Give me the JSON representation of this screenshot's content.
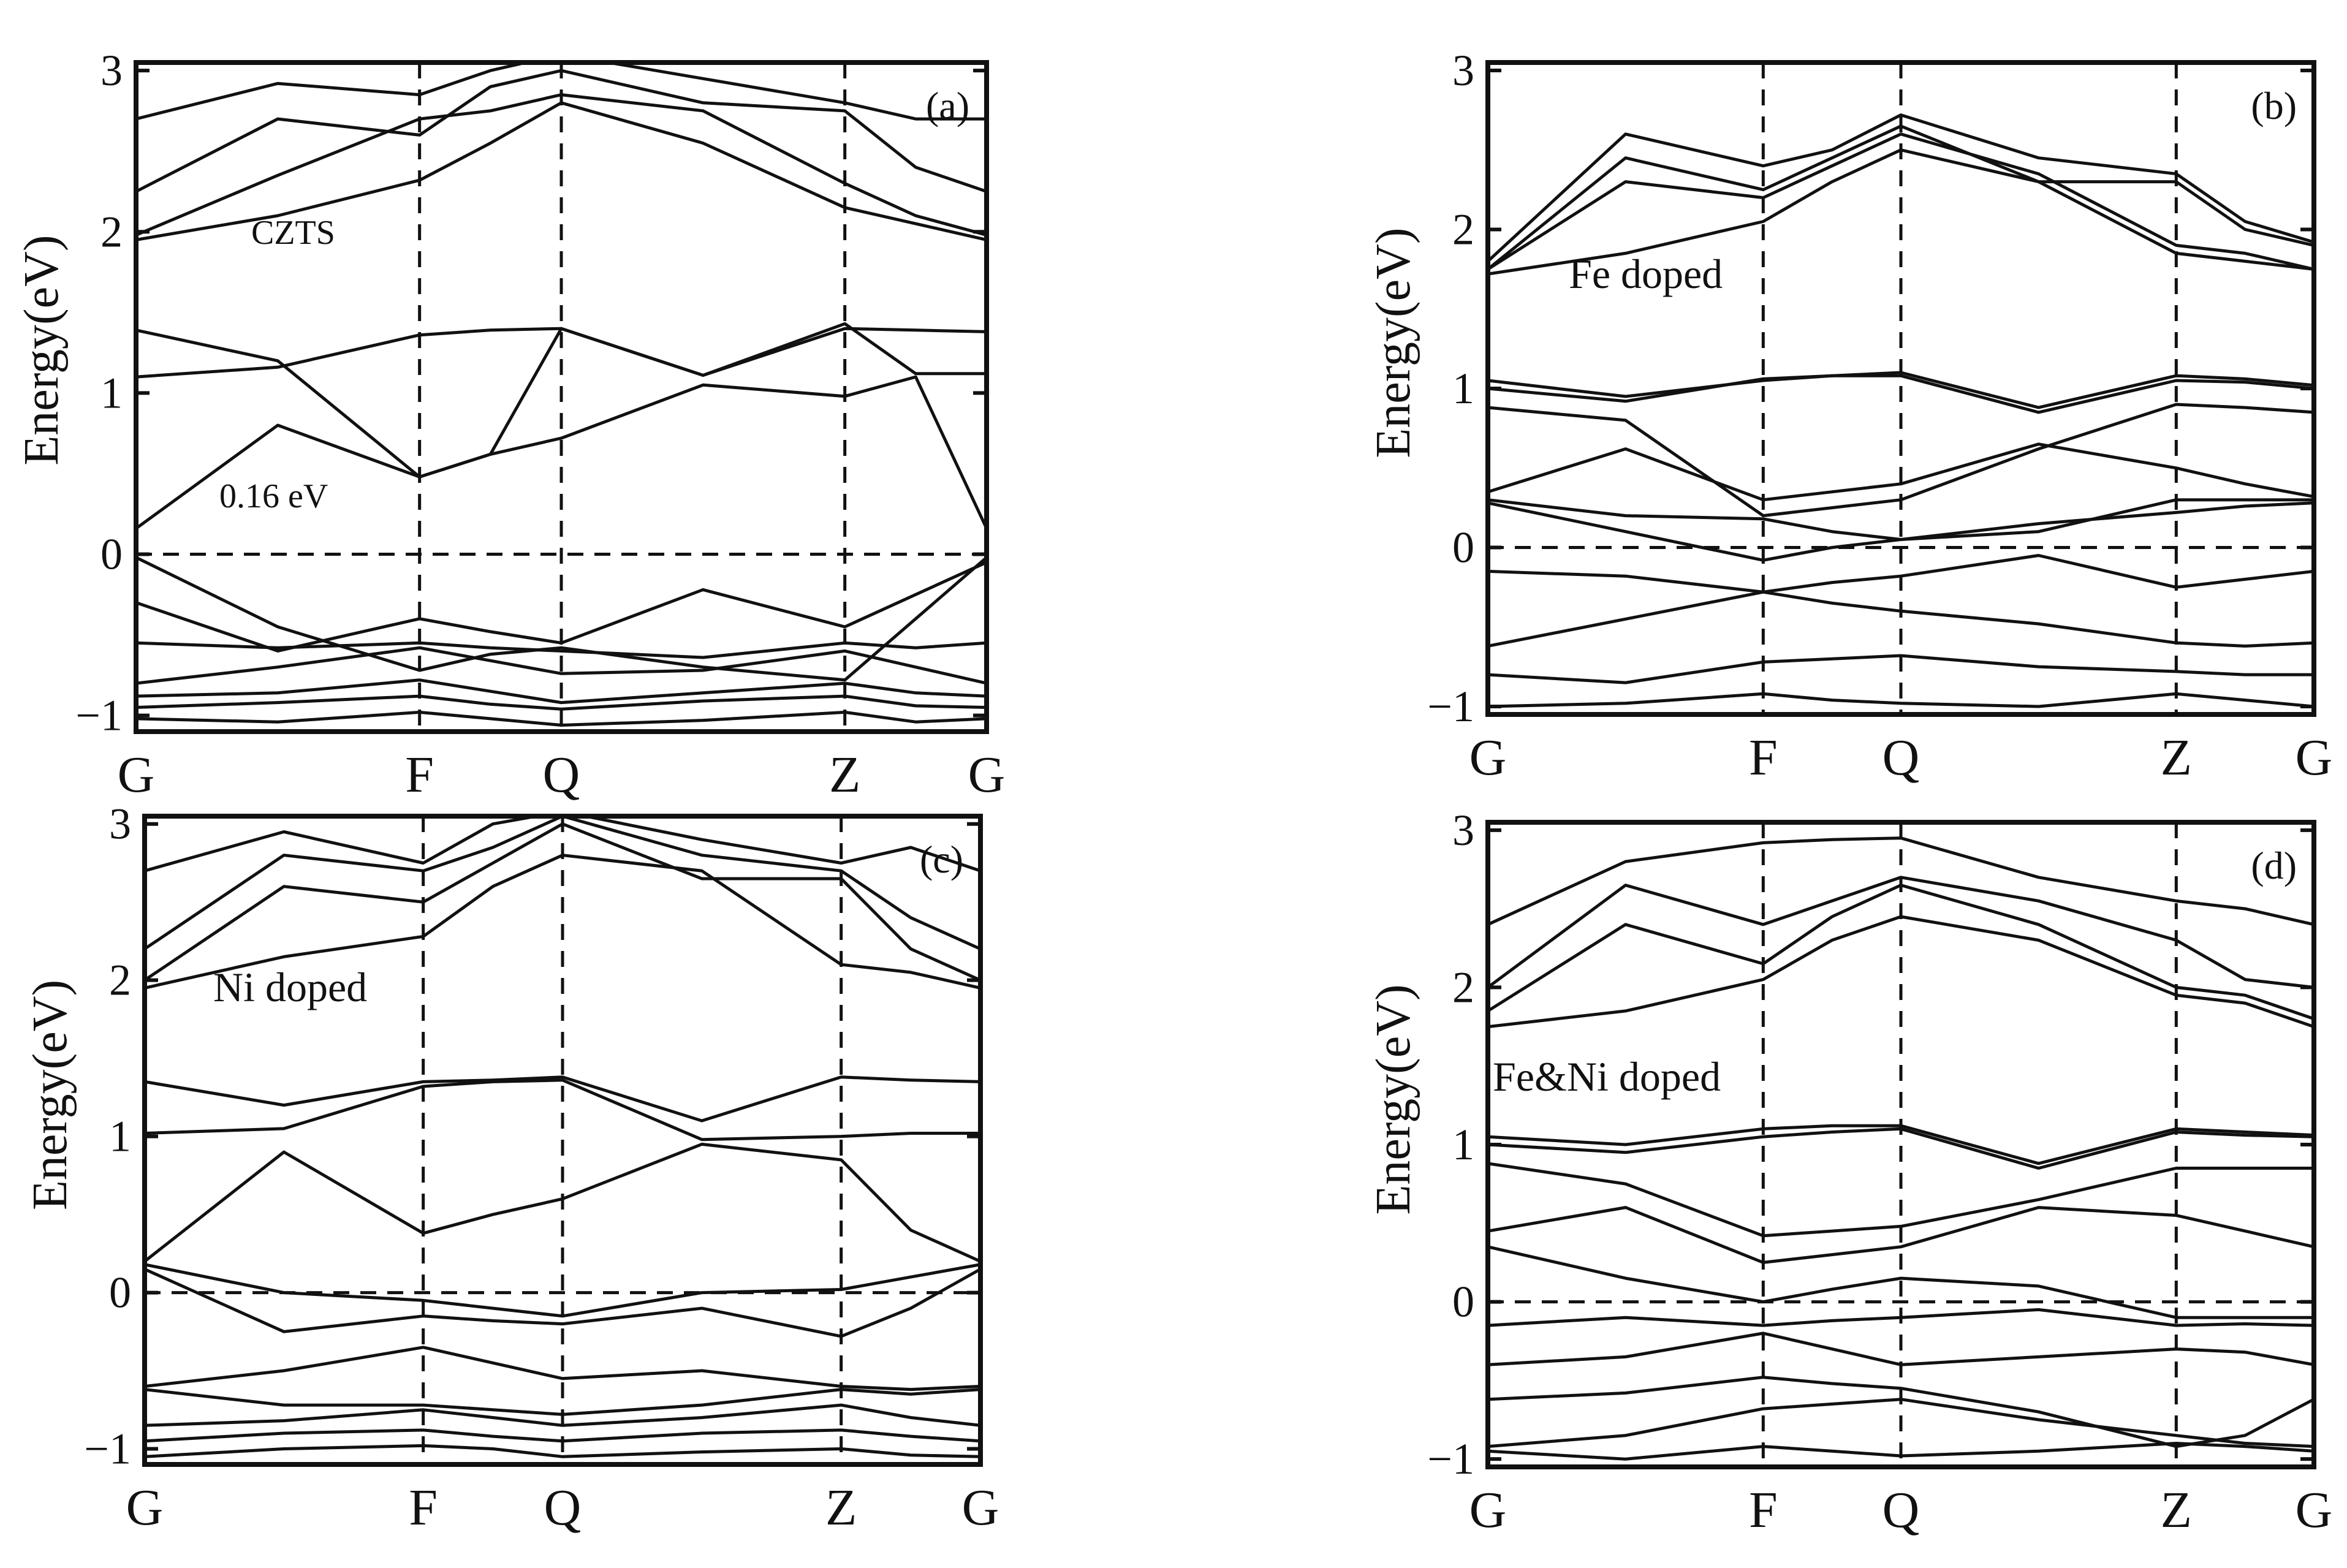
{
  "chart_data": [
    {
      "type": "line",
      "panel_label": "(a)",
      "annotations": [
        "CZTS",
        "0.16 eV"
      ],
      "ylabel": "Energy(eV)",
      "xlabel": "",
      "ylim": [
        -1.1,
        3.05
      ],
      "yticks": [
        -1,
        0,
        1,
        2,
        3
      ],
      "x_labels": [
        "G",
        "F",
        "Q",
        "Z",
        "G"
      ],
      "x_positions": [
        0,
        1,
        1.5,
        2.5,
        3
      ],
      "fermi_level": 0,
      "grid": false,
      "bands": {
        "x": [
          0,
          0.5,
          1,
          1.25,
          1.5,
          2,
          2.5,
          2.75,
          3
        ],
        "lines": [
          [
            -1.02,
            -1.04,
            -0.98,
            -1.02,
            -1.06,
            -1.03,
            -0.98,
            -1.04,
            -1.02
          ],
          [
            -0.95,
            -0.92,
            -0.88,
            -0.93,
            -0.96,
            -0.91,
            -0.88,
            -0.94,
            -0.95
          ],
          [
            -0.88,
            -0.86,
            -0.78,
            -0.85,
            -0.92,
            -0.86,
            -0.8,
            -0.86,
            -0.88
          ],
          [
            -0.8,
            -0.7,
            -0.58,
            -0.66,
            -0.74,
            -0.72,
            -0.6,
            -0.7,
            -0.8
          ],
          [
            -0.55,
            -0.58,
            -0.55,
            -0.58,
            -0.6,
            -0.64,
            -0.55,
            -0.58,
            -0.55
          ],
          [
            -0.3,
            -0.6,
            -0.4,
            -0.48,
            -0.55,
            -0.22,
            -0.45,
            -0.25,
            -0.05
          ],
          [
            -0.02,
            -0.45,
            -0.72,
            -0.62,
            -0.58,
            -0.7,
            -0.78,
            -0.4,
            -0.02
          ],
          [
            0.16,
            0.8,
            0.48,
            0.62,
            0.72,
            1.05,
            0.98,
            1.1,
            0.16
          ],
          [
            1.1,
            1.16,
            1.36,
            1.39,
            1.4,
            1.11,
            1.4,
            1.39,
            1.38
          ],
          [
            1.39,
            1.2,
            0.48,
            0.62,
            1.4,
            1.11,
            1.43,
            1.12,
            1.12
          ],
          [
            1.95,
            2.1,
            2.32,
            2.55,
            2.8,
            2.55,
            2.15,
            2.05,
            1.95
          ],
          [
            1.98,
            2.35,
            2.7,
            2.75,
            2.85,
            2.75,
            2.3,
            2.1,
            1.98
          ],
          [
            2.25,
            2.7,
            2.6,
            2.9,
            3.0,
            2.8,
            2.75,
            2.4,
            2.25
          ],
          [
            2.7,
            2.92,
            2.85,
            3.0,
            3.1,
            2.95,
            2.8,
            2.7,
            2.7
          ]
        ]
      }
    },
    {
      "type": "line",
      "panel_label": "(b)",
      "annotations": [
        "Fe doped"
      ],
      "ylabel": "Energy(eV)",
      "xlabel": "",
      "ylim": [
        -1.05,
        3.05
      ],
      "yticks": [
        -1,
        0,
        1,
        2,
        3
      ],
      "x_labels": [
        "G",
        "F",
        "Q",
        "Z",
        "G"
      ],
      "x_positions": [
        0,
        1,
        1.5,
        2.5,
        3
      ],
      "fermi_level": 0,
      "grid": false,
      "bands": {
        "x": [
          0,
          0.5,
          1,
          1.25,
          1.5,
          2,
          2.5,
          2.75,
          3
        ],
        "lines": [
          [
            -1.0,
            -0.98,
            -0.92,
            -0.96,
            -0.98,
            -1.0,
            -0.92,
            -0.96,
            -1.0
          ],
          [
            -0.8,
            -0.85,
            -0.72,
            -0.7,
            -0.68,
            -0.75,
            -0.78,
            -0.8,
            -0.8
          ],
          [
            -0.62,
            -0.45,
            -0.28,
            -0.35,
            -0.4,
            -0.48,
            -0.6,
            -0.62,
            -0.6
          ],
          [
            -0.15,
            -0.18,
            -0.28,
            -0.22,
            -0.18,
            -0.05,
            -0.25,
            -0.2,
            -0.15
          ],
          [
            0.28,
            0.1,
            -0.08,
            0.0,
            0.05,
            0.15,
            0.22,
            0.26,
            0.28
          ],
          [
            0.3,
            0.2,
            0.18,
            0.1,
            0.05,
            0.1,
            0.3,
            0.3,
            0.3
          ],
          [
            0.35,
            0.62,
            0.3,
            0.35,
            0.4,
            0.65,
            0.5,
            0.4,
            0.32
          ],
          [
            0.88,
            0.8,
            0.2,
            0.25,
            0.3,
            0.62,
            0.9,
            0.88,
            0.85
          ],
          [
            1.0,
            0.92,
            1.06,
            1.08,
            1.08,
            0.85,
            1.05,
            1.04,
            1.0
          ],
          [
            1.05,
            0.95,
            1.05,
            1.08,
            1.1,
            0.88,
            1.08,
            1.06,
            1.02
          ],
          [
            1.72,
            1.85,
            2.05,
            2.3,
            2.5,
            2.3,
            1.85,
            1.8,
            1.75
          ],
          [
            1.75,
            2.3,
            2.2,
            2.4,
            2.6,
            2.35,
            1.9,
            1.85,
            1.75
          ],
          [
            1.75,
            2.45,
            2.25,
            2.45,
            2.65,
            2.3,
            2.3,
            2.0,
            1.9
          ],
          [
            1.8,
            2.6,
            2.4,
            2.5,
            2.72,
            2.45,
            2.35,
            2.05,
            1.92
          ]
        ]
      }
    },
    {
      "type": "line",
      "panel_label": "(c)",
      "annotations": [
        "Ni  doped"
      ],
      "ylabel": "Energy(eV)",
      "xlabel": "",
      "ylim": [
        -1.1,
        3.05
      ],
      "yticks": [
        -1,
        0,
        1,
        2,
        3
      ],
      "x_labels": [
        "G",
        "F",
        "Q",
        "Z",
        "G"
      ],
      "x_positions": [
        0,
        1,
        1.5,
        2.5,
        3
      ],
      "fermi_level": 0,
      "grid": false,
      "bands": {
        "x": [
          0,
          0.5,
          1,
          1.25,
          1.5,
          2,
          2.5,
          2.75,
          3
        ],
        "lines": [
          [
            -1.05,
            -1.0,
            -0.98,
            -1.0,
            -1.05,
            -1.02,
            -1.0,
            -1.04,
            -1.05
          ],
          [
            -0.95,
            -0.9,
            -0.88,
            -0.92,
            -0.95,
            -0.9,
            -0.88,
            -0.92,
            -0.95
          ],
          [
            -0.85,
            -0.82,
            -0.75,
            -0.8,
            -0.85,
            -0.8,
            -0.72,
            -0.8,
            -0.85
          ],
          [
            -0.62,
            -0.72,
            -0.72,
            -0.75,
            -0.78,
            -0.72,
            -0.62,
            -0.65,
            -0.62
          ],
          [
            -0.6,
            -0.5,
            -0.35,
            -0.45,
            -0.55,
            -0.5,
            -0.6,
            -0.62,
            -0.6
          ],
          [
            0.15,
            -0.25,
            -0.15,
            -0.18,
            -0.2,
            -0.1,
            -0.28,
            -0.1,
            0.15
          ],
          [
            0.18,
            0.0,
            -0.05,
            -0.1,
            -0.15,
            0.0,
            0.02,
            0.1,
            0.18
          ],
          [
            0.2,
            0.9,
            0.38,
            0.5,
            0.6,
            0.95,
            0.85,
            0.4,
            0.2
          ],
          [
            1.02,
            1.05,
            1.32,
            1.35,
            1.36,
            0.98,
            1.0,
            1.02,
            1.02
          ],
          [
            1.35,
            1.2,
            1.35,
            1.36,
            1.38,
            1.1,
            1.38,
            1.36,
            1.35
          ],
          [
            1.95,
            2.15,
            2.28,
            2.6,
            2.8,
            2.7,
            2.1,
            2.05,
            1.95
          ],
          [
            2.0,
            2.6,
            2.5,
            2.75,
            3.0,
            2.65,
            2.65,
            2.2,
            2.0
          ],
          [
            2.2,
            2.8,
            2.7,
            2.85,
            3.05,
            2.8,
            2.7,
            2.4,
            2.2
          ],
          [
            2.7,
            2.95,
            2.75,
            3.0,
            3.08,
            2.9,
            2.75,
            2.85,
            2.7
          ]
        ]
      }
    },
    {
      "type": "line",
      "panel_label": "(d)",
      "annotations": [
        "Fe&Ni doped"
      ],
      "ylabel": "Energy(eV)",
      "xlabel": "",
      "ylim": [
        -1.05,
        3.05
      ],
      "yticks": [
        -1,
        0,
        1,
        2,
        3
      ],
      "x_labels": [
        "G",
        "F",
        "Q",
        "Z",
        "G"
      ],
      "x_positions": [
        0,
        1,
        1.5,
        2.5,
        3
      ],
      "fermi_level": 0,
      "grid": false,
      "bands": {
        "x": [
          0,
          0.5,
          1,
          1.25,
          1.5,
          2,
          2.5,
          2.75,
          3
        ],
        "lines": [
          [
            -0.95,
            -1.0,
            -0.92,
            -0.95,
            -0.98,
            -0.95,
            -0.9,
            -0.92,
            -0.95
          ],
          [
            -0.92,
            -0.85,
            -0.68,
            -0.65,
            -0.62,
            -0.75,
            -0.85,
            -0.9,
            -0.92
          ],
          [
            -0.62,
            -0.58,
            -0.48,
            -0.52,
            -0.55,
            -0.7,
            -0.92,
            -0.85,
            -0.62
          ],
          [
            -0.4,
            -0.35,
            -0.2,
            -0.3,
            -0.4,
            -0.35,
            -0.3,
            -0.32,
            -0.4
          ],
          [
            -0.15,
            -0.1,
            -0.15,
            -0.12,
            -0.1,
            -0.05,
            -0.15,
            -0.14,
            -0.15
          ],
          [
            0.35,
            0.15,
            0.0,
            0.08,
            0.15,
            0.1,
            -0.1,
            -0.1,
            -0.1
          ],
          [
            0.45,
            0.6,
            0.25,
            0.3,
            0.35,
            0.6,
            0.55,
            0.45,
            0.35
          ],
          [
            0.88,
            0.75,
            0.42,
            0.45,
            0.48,
            0.65,
            0.85,
            0.85,
            0.85
          ],
          [
            1.0,
            0.95,
            1.05,
            1.08,
            1.1,
            0.85,
            1.08,
            1.06,
            1.05
          ],
          [
            1.05,
            1.0,
            1.1,
            1.12,
            1.12,
            0.88,
            1.1,
            1.08,
            1.06
          ],
          [
            1.75,
            1.85,
            2.05,
            2.3,
            2.45,
            2.3,
            1.95,
            1.9,
            1.75
          ],
          [
            1.85,
            2.4,
            2.15,
            2.45,
            2.65,
            2.4,
            2.0,
            1.95,
            1.8
          ],
          [
            2.0,
            2.65,
            2.4,
            2.55,
            2.7,
            2.55,
            2.3,
            2.05,
            2.0
          ],
          [
            2.4,
            2.8,
            2.92,
            2.94,
            2.95,
            2.7,
            2.55,
            2.5,
            2.4
          ]
        ]
      }
    }
  ]
}
